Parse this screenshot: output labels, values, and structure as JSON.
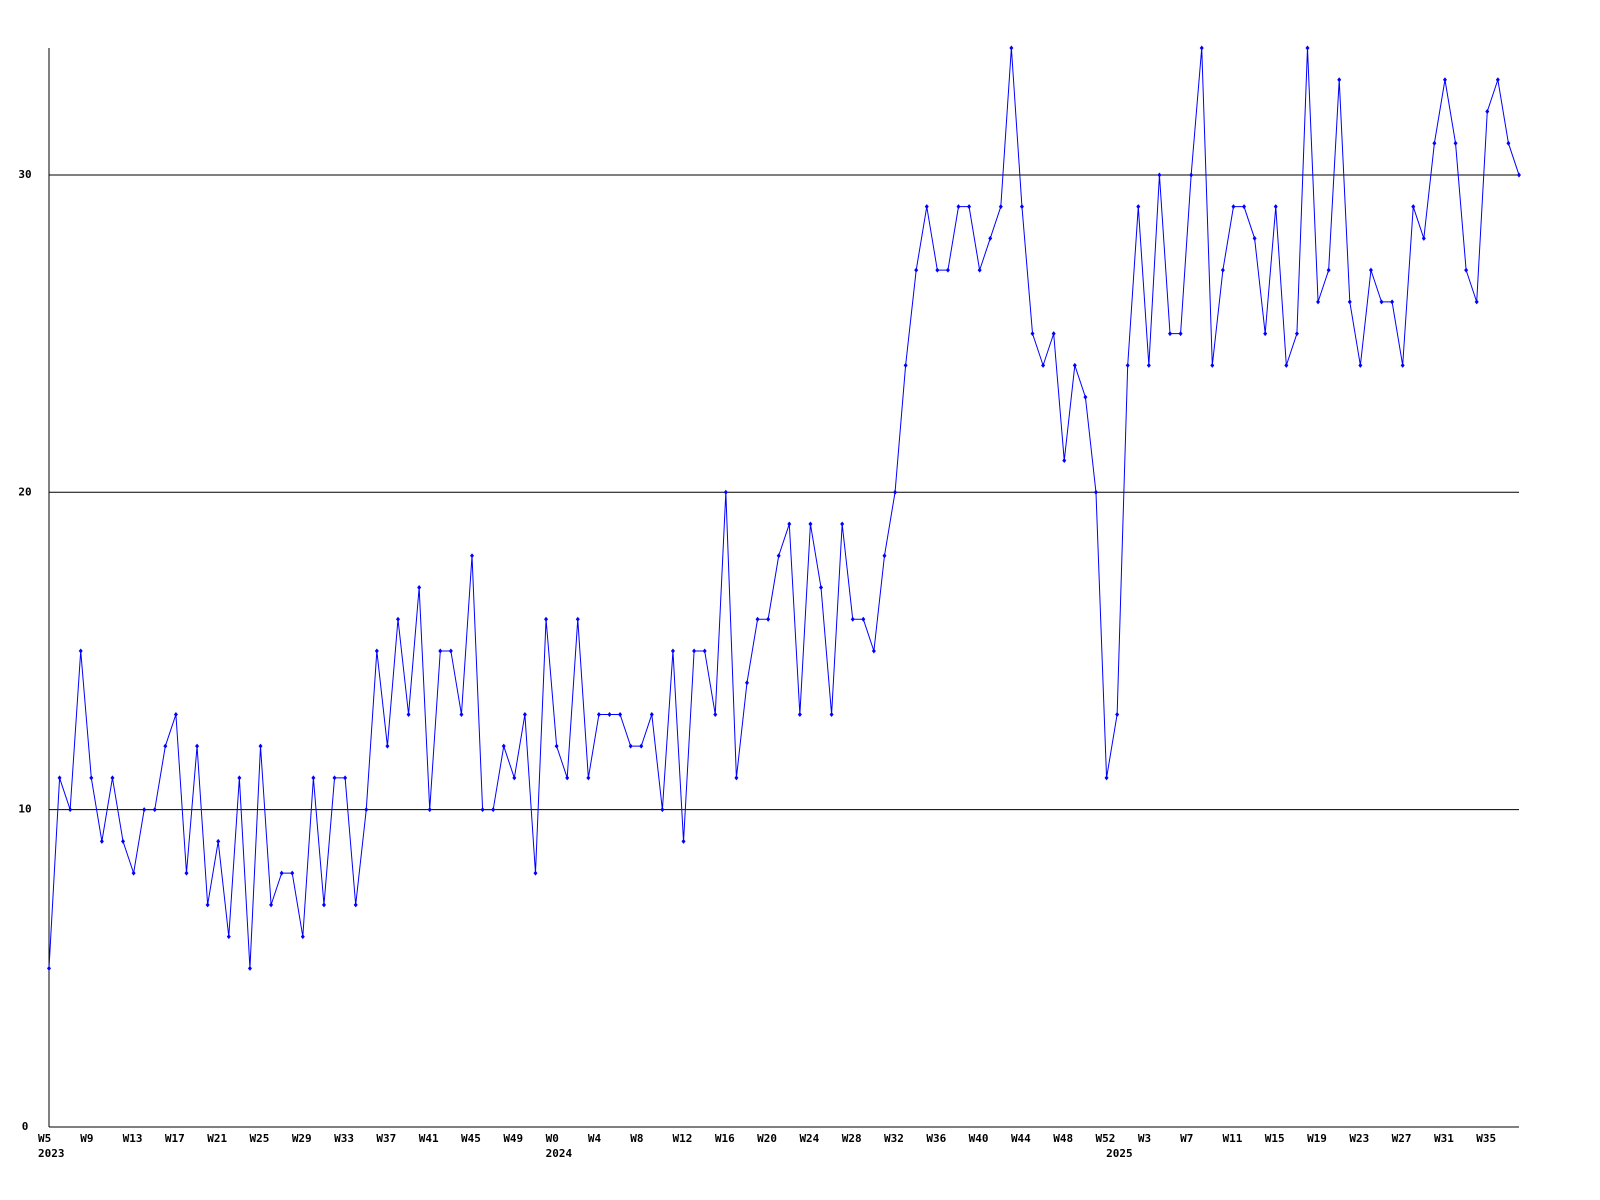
{
  "chart_data": {
    "type": "line",
    "categories": [
      "W5",
      null,
      null,
      null,
      "W9",
      null,
      null,
      null,
      "W13",
      null,
      null,
      null,
      "W17",
      null,
      null,
      null,
      "W21",
      null,
      null,
      null,
      "W25",
      null,
      null,
      null,
      "W29",
      null,
      null,
      null,
      "W33",
      null,
      null,
      null,
      "W37",
      null,
      null,
      null,
      "W41",
      null,
      null,
      null,
      "W45",
      null,
      null,
      null,
      "W49",
      null,
      null,
      null,
      "W0",
      null,
      null,
      null,
      "W4",
      null,
      null,
      null,
      "W8",
      null,
      null,
      null,
      "W12",
      null,
      null,
      null,
      "W16",
      null,
      null,
      null,
      "W20",
      null,
      null,
      null,
      "W24",
      null,
      null,
      null,
      "W28",
      null,
      null,
      null,
      "W32",
      null,
      null,
      null,
      "W36",
      null,
      null,
      null,
      "W40",
      null,
      null,
      null,
      "W44",
      null,
      null,
      null,
      "W48",
      null,
      null,
      null,
      "W52",
      null,
      null,
      null,
      "W3",
      null,
      null,
      null,
      "W7",
      null,
      null,
      null,
      "W11",
      null,
      null,
      null,
      "W15",
      null,
      null,
      null,
      "W19",
      null,
      null,
      null,
      "W23",
      null,
      null,
      null,
      "W27",
      null,
      null,
      null,
      "W31",
      null,
      null,
      null,
      "W35",
      null,
      null,
      null
    ],
    "year_labels": [
      "2023",
      null,
      null,
      null,
      null,
      null,
      null,
      null,
      null,
      null,
      null,
      null,
      null,
      null,
      null,
      null,
      null,
      null,
      null,
      null,
      null,
      null,
      null,
      null,
      null,
      null,
      null,
      null,
      null,
      null,
      null,
      null,
      null,
      null,
      null,
      null,
      null,
      null,
      null,
      null,
      null,
      null,
      null,
      null,
      null,
      null,
      null,
      null,
      "2024",
      null,
      null,
      null,
      null,
      null,
      null,
      null,
      null,
      null,
      null,
      null,
      null,
      null,
      null,
      null,
      null,
      null,
      null,
      null,
      null,
      null,
      null,
      null,
      null,
      null,
      null,
      null,
      null,
      null,
      null,
      null,
      null,
      null,
      null,
      null,
      null,
      null,
      null,
      null,
      null,
      null,
      null,
      null,
      null,
      null,
      null,
      null,
      null,
      null,
      null,
      null,
      null,
      "2025",
      null,
      null,
      null,
      null,
      null,
      null,
      null,
      null,
      null,
      null,
      null,
      null,
      null,
      null,
      null,
      null,
      null,
      null,
      null,
      null,
      null,
      null,
      null,
      null,
      null,
      null,
      null,
      null,
      null,
      null,
      null,
      null,
      null,
      null,
      null,
      null,
      null,
      null
    ],
    "series": [
      {
        "color": "#0000ff",
        "values": [
          5,
          11,
          10,
          15,
          11,
          9,
          11,
          9,
          8,
          10,
          10,
          12,
          13,
          8,
          12,
          7,
          9,
          6,
          11,
          5,
          12,
          7,
          8,
          8,
          6,
          11,
          7,
          11,
          11,
          7,
          10,
          15,
          12,
          16,
          13,
          17,
          10,
          15,
          15,
          13,
          18,
          10,
          10,
          12,
          11,
          13,
          8,
          16,
          12,
          11,
          16,
          11,
          13,
          13,
          13,
          12,
          12,
          13,
          10,
          15,
          9,
          15,
          15,
          13,
          20,
          11,
          14,
          16,
          16,
          18,
          19,
          13,
          19,
          17,
          13,
          19,
          16,
          16,
          15,
          18,
          20,
          24,
          27,
          29,
          27,
          27,
          29,
          29,
          27,
          28,
          29,
          34,
          29,
          25,
          24,
          25,
          21,
          24,
          23,
          20,
          11,
          13,
          24,
          29,
          24,
          30,
          25,
          25,
          30,
          34,
          24,
          27,
          29,
          29,
          28,
          25,
          29,
          24,
          25,
          34,
          26,
          27,
          33,
          26,
          24,
          27,
          26,
          26,
          24,
          29,
          28,
          31,
          33,
          31,
          27,
          26,
          32,
          33,
          31,
          30
        ]
      }
    ],
    "ylim": [
      0,
      34
    ],
    "yticks": [
      0,
      10,
      20,
      30
    ],
    "grid": true
  }
}
